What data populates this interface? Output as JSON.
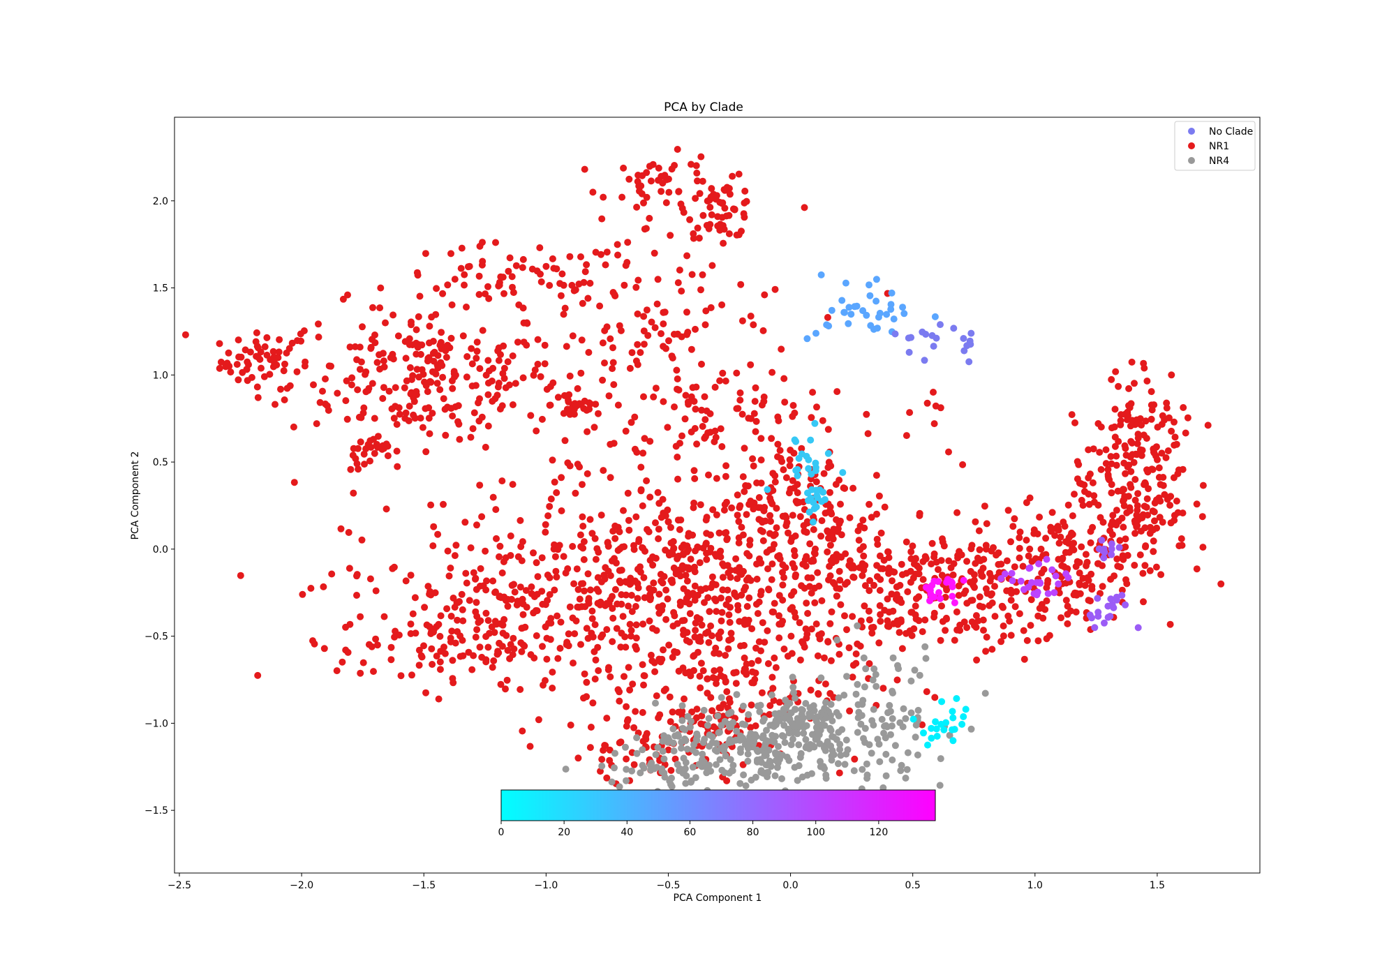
{
  "chart_data": {
    "type": "scatter",
    "title": "PCA by Clade",
    "xlabel": "PCA Component 1",
    "ylabel": "PCA Component 2",
    "xlim": [
      -2.52,
      1.92
    ],
    "ylim": [
      -1.86,
      2.48
    ],
    "xticks": [
      -2.5,
      -2.0,
      -1.5,
      -1.0,
      -0.5,
      0.0,
      0.5,
      1.0,
      1.5
    ],
    "xtick_labels": [
      "−2.5",
      "−2.0",
      "−1.5",
      "−1.0",
      "−0.5",
      "0.0",
      "0.5",
      "1.0",
      "1.5"
    ],
    "yticks": [
      -1.5,
      -1.0,
      -0.5,
      0.0,
      0.5,
      1.0,
      1.5,
      2.0
    ],
    "ytick_labels": [
      "−1.5",
      "−1.0",
      "−0.5",
      "0.0",
      "0.5",
      "1.0",
      "1.5",
      "2.0"
    ],
    "grid": false,
    "legend": {
      "placement": "top-right",
      "entries": [
        {
          "label": "No Clade",
          "color": "#7b7bf0"
        },
        {
          "label": "NR1",
          "color": "#e41a1c"
        },
        {
          "label": "NR4",
          "color": "#999999"
        }
      ]
    },
    "colorbar": {
      "orientation": "horizontal",
      "colormap": "cool",
      "range": [
        0,
        138
      ],
      "ticks": [
        0,
        20,
        40,
        60,
        80,
        100,
        120
      ],
      "tick_labels": [
        "0",
        "20",
        "40",
        "60",
        "80",
        "100",
        "120"
      ],
      "start_color": "#00ffff",
      "end_color": "#ff00ff"
    },
    "series": [
      {
        "name": "NR1",
        "color": "#e41a1c",
        "clusters": [
          {
            "cx": -2.15,
            "cy": 1.08,
            "sx": 0.09,
            "sy": 0.08,
            "n": 55
          },
          {
            "cx": -1.5,
            "cy": 1.0,
            "sx": 0.28,
            "sy": 0.2,
            "n": 260
          },
          {
            "cx": -1.7,
            "cy": 0.55,
            "sx": 0.05,
            "sy": 0.05,
            "n": 25
          },
          {
            "cx": -0.88,
            "cy": 0.83,
            "sx": 0.05,
            "sy": 0.05,
            "n": 30
          },
          {
            "cx": -1.15,
            "cy": 1.55,
            "sx": 0.25,
            "sy": 0.1,
            "n": 60
          },
          {
            "cx": -0.5,
            "cy": 2.1,
            "sx": 0.12,
            "sy": 0.08,
            "n": 45
          },
          {
            "cx": -0.28,
            "cy": 1.95,
            "sx": 0.07,
            "sy": 0.08,
            "n": 55
          },
          {
            "cx": -0.55,
            "cy": 1.15,
            "sx": 0.3,
            "sy": 0.4,
            "n": 150
          },
          {
            "cx": -0.35,
            "cy": 0.75,
            "sx": 0.15,
            "sy": 0.12,
            "n": 40
          },
          {
            "cx": -0.9,
            "cy": -0.25,
            "sx": 0.45,
            "sy": 0.25,
            "n": 270
          },
          {
            "cx": -0.3,
            "cy": -0.15,
            "sx": 0.4,
            "sy": 0.25,
            "n": 330
          },
          {
            "cx": -0.3,
            "cy": -0.75,
            "sx": 0.3,
            "sy": 0.25,
            "n": 220
          },
          {
            "cx": -1.35,
            "cy": -0.5,
            "sx": 0.25,
            "sy": 0.15,
            "n": 140
          },
          {
            "cx": 0.0,
            "cy": 0.3,
            "sx": 0.15,
            "sy": 0.2,
            "n": 110
          },
          {
            "cx": 0.35,
            "cy": -0.1,
            "sx": 0.3,
            "sy": 0.2,
            "n": 150
          },
          {
            "cx": 0.7,
            "cy": -0.3,
            "sx": 0.25,
            "sy": 0.15,
            "n": 160
          },
          {
            "cx": 1.1,
            "cy": -0.05,
            "sx": 0.2,
            "sy": 0.15,
            "n": 160
          },
          {
            "cx": 1.4,
            "cy": 0.35,
            "sx": 0.12,
            "sy": 0.2,
            "n": 170
          },
          {
            "cx": 1.45,
            "cy": 0.75,
            "sx": 0.1,
            "sy": 0.15,
            "n": 60
          },
          {
            "cx": -0.6,
            "cy": -1.15,
            "sx": 0.15,
            "sy": 0.1,
            "n": 50
          },
          {
            "cx": -0.3,
            "cy": -1.0,
            "sx": 0.06,
            "sy": 0.06,
            "n": 30
          },
          {
            "cx": -1.0,
            "cy": 0.25,
            "sx": 0.35,
            "sy": 0.15,
            "n": 25
          },
          {
            "cx": 0.15,
            "cy": 0.75,
            "sx": 0.3,
            "sy": 0.15,
            "n": 25
          }
        ]
      },
      {
        "name": "NR4",
        "color": "#999999",
        "clusters": [
          {
            "cx": -0.15,
            "cy": -1.15,
            "sx": 0.2,
            "sy": 0.12,
            "n": 230
          },
          {
            "cx": 0.05,
            "cy": -1.0,
            "sx": 0.1,
            "sy": 0.08,
            "n": 90
          },
          {
            "cx": 0.35,
            "cy": -0.95,
            "sx": 0.15,
            "sy": 0.2,
            "n": 100
          },
          {
            "cx": -0.5,
            "cy": -1.25,
            "sx": 0.15,
            "sy": 0.08,
            "n": 50
          }
        ]
      },
      {
        "name": "No Clade",
        "clusters": [
          {
            "cx": 0.32,
            "cy": 1.38,
            "sx": 0.12,
            "sy": 0.1,
            "n": 35,
            "color": "#5aa6ff"
          },
          {
            "cx": 0.55,
            "cy": 1.2,
            "sx": 0.05,
            "sy": 0.05,
            "n": 12,
            "color": "#7b7bf0"
          },
          {
            "cx": 0.72,
            "cy": 1.17,
            "sx": 0.02,
            "sy": 0.04,
            "n": 8,
            "color": "#7b7bf0"
          },
          {
            "cx": 0.05,
            "cy": 0.5,
            "sx": 0.06,
            "sy": 0.08,
            "n": 20,
            "color": "#36c8f5"
          },
          {
            "cx": 0.1,
            "cy": 0.3,
            "sx": 0.03,
            "sy": 0.06,
            "n": 15,
            "color": "#36c8f5"
          },
          {
            "cx": 0.62,
            "cy": -0.25,
            "sx": 0.05,
            "sy": 0.05,
            "n": 20,
            "color": "#ff14ff"
          },
          {
            "cx": 1.0,
            "cy": -0.2,
            "sx": 0.06,
            "sy": 0.07,
            "n": 25,
            "color": "#bb44ff"
          },
          {
            "cx": 1.3,
            "cy": 0.0,
            "sx": 0.04,
            "sy": 0.03,
            "n": 10,
            "color": "#9b5cf6"
          },
          {
            "cx": 1.32,
            "cy": -0.3,
            "sx": 0.04,
            "sy": 0.05,
            "n": 12,
            "color": "#9b5cf6"
          },
          {
            "cx": 1.25,
            "cy": -0.4,
            "sx": 0.03,
            "sy": 0.03,
            "n": 6,
            "color": "#9b5cf6"
          },
          {
            "cx": 0.6,
            "cy": -1.05,
            "sx": 0.06,
            "sy": 0.05,
            "n": 15,
            "color": "#00f0ff"
          },
          {
            "cx": 0.65,
            "cy": -0.95,
            "sx": 0.04,
            "sy": 0.05,
            "n": 6,
            "color": "#00f0ff"
          }
        ]
      }
    ]
  }
}
